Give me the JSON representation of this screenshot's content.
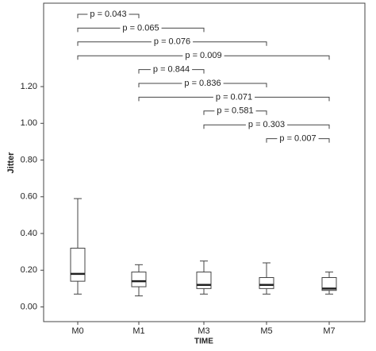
{
  "chart_data": {
    "type": "box",
    "x_label": "TIME",
    "y_label": "Jitter",
    "categories": [
      "M0",
      "M1",
      "M3",
      "M5",
      "M7"
    ],
    "boxes": [
      {
        "min": 0.07,
        "q1": 0.14,
        "median": 0.18,
        "q3": 0.32,
        "max": 0.59
      },
      {
        "min": 0.06,
        "q1": 0.11,
        "median": 0.14,
        "q3": 0.19,
        "max": 0.23
      },
      {
        "min": 0.07,
        "q1": 0.1,
        "median": 0.12,
        "q3": 0.19,
        "max": 0.25
      },
      {
        "min": 0.07,
        "q1": 0.1,
        "median": 0.12,
        "q3": 0.16,
        "max": 0.24
      },
      {
        "min": 0.07,
        "q1": 0.09,
        "median": 0.1,
        "q3": 0.16,
        "max": 0.19
      }
    ],
    "ylim": [
      -0.08,
      1.65
    ],
    "yticks": [
      {
        "value": 0,
        "label": "0.00"
      },
      {
        "value": 0.2,
        "label": "0.20"
      },
      {
        "value": 0.4,
        "label": "0.40"
      },
      {
        "value": 0.6,
        "label": "0.60"
      },
      {
        "value": 0.8,
        "label": "0.80"
      },
      {
        "value": 1.0,
        "label": "1.00"
      },
      {
        "value": 1.2,
        "label": "1.20"
      }
    ],
    "comparisons": [
      {
        "from": "M0",
        "to": "M1",
        "label": "p = 0.043"
      },
      {
        "from": "M0",
        "to": "M3",
        "label": "p = 0.065"
      },
      {
        "from": "M0",
        "to": "M5",
        "label": "p = 0.076"
      },
      {
        "from": "M0",
        "to": "M7",
        "label": "p = 0.009"
      },
      {
        "from": "M1",
        "to": "M3",
        "label": "p = 0.844"
      },
      {
        "from": "M1",
        "to": "M5",
        "label": "p = 0.836"
      },
      {
        "from": "M1",
        "to": "M7",
        "label": "p = 0.071"
      },
      {
        "from": "M3",
        "to": "M5",
        "label": "p = 0.581"
      },
      {
        "from": "M3",
        "to": "M7",
        "label": "p = 0.303"
      },
      {
        "from": "M5",
        "to": "M7",
        "label": "p = 0.007"
      }
    ]
  }
}
